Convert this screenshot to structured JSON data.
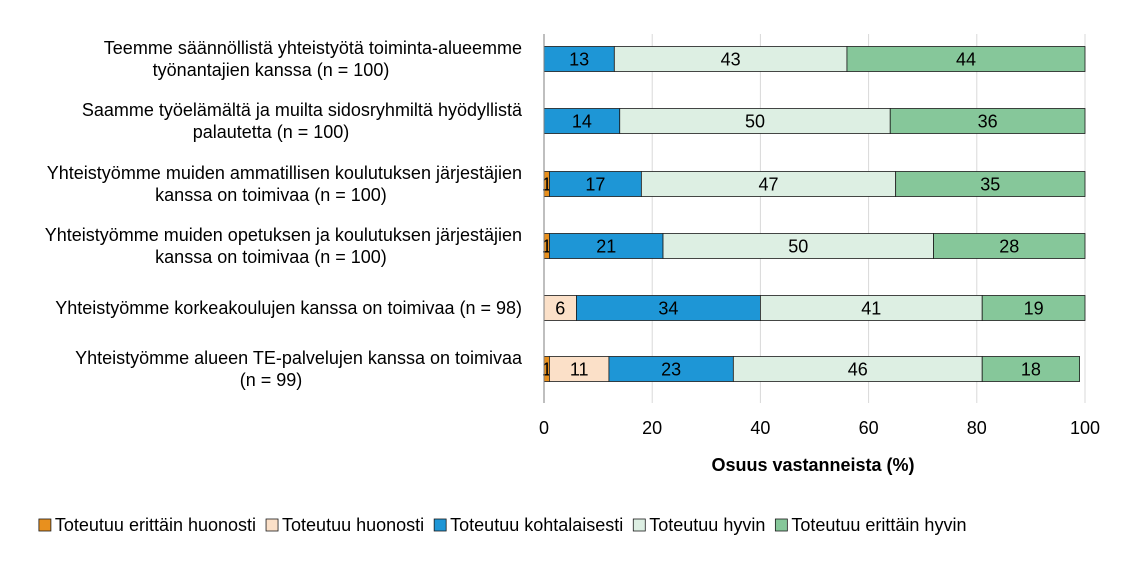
{
  "chart_data": {
    "type": "bar",
    "orientation": "horizontal",
    "stacked": true,
    "categories": [
      [
        "Teemme säännöllistä yhteistyötä toiminta-alueemme",
        "työnantajien kanssa (n = 100)"
      ],
      [
        "Saamme työelämältä ja muilta sidosryhmiltä hyödyllistä",
        "palautetta (n = 100)"
      ],
      [
        "Yhteistyömme muiden ammatillisen koulutuksen järjestäjien",
        "kanssa on toimivaa (n = 100)"
      ],
      [
        "Yhteistyömme muiden opetuksen ja koulutuksen järjestäjien",
        "kanssa on toimivaa (n = 100)"
      ],
      [
        "Yhteistyömme korkeakoulujen kanssa on toimivaa (n = 98)"
      ],
      [
        "Yhteistyömme alueen TE-palvelujen kanssa on toimivaa",
        "(n = 99)"
      ]
    ],
    "series": [
      {
        "name": "Toteutuu erittäin huonosti",
        "color": "#E8901E",
        "values": [
          0,
          0,
          1,
          1,
          0,
          1
        ]
      },
      {
        "name": "Toteutuu huonosti",
        "color": "#FBE0C8",
        "values": [
          0,
          0,
          0,
          0,
          6,
          11
        ]
      },
      {
        "name": "Toteutuu kohtalaisesti",
        "color": "#1E96D6",
        "values": [
          13,
          14,
          17,
          21,
          34,
          23
        ]
      },
      {
        "name": "Toteutuu hyvin",
        "color": "#DDEFE3",
        "values": [
          43,
          50,
          47,
          50,
          41,
          46
        ]
      },
      {
        "name": "Toteutuu erittäin hyvin",
        "color": "#86C79A",
        "values": [
          44,
          36,
          35,
          28,
          19,
          18
        ]
      }
    ],
    "xlabel": "Osuus vastanneista (%)",
    "xlim": [
      0,
      100
    ],
    "xticks": [
      0,
      20,
      40,
      60,
      80,
      100
    ],
    "grid": "vertical",
    "legend_position": "bottom"
  }
}
